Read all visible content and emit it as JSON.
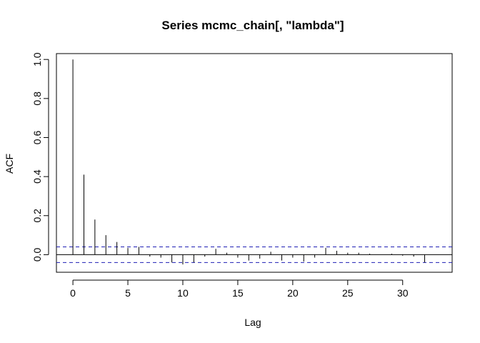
{
  "chart_data": {
    "type": "bar",
    "title": "Series  mcmc_chain[, \"lambda\"]",
    "xlabel": "Lag",
    "ylabel": "ACF",
    "xlim": [
      -1.5,
      34.5
    ],
    "ylim": [
      -0.09,
      1.03
    ],
    "x_ticks": [
      0,
      5,
      10,
      15,
      20,
      25,
      30
    ],
    "y_ticks": [
      0.0,
      0.2,
      0.4,
      0.6,
      0.8,
      1.0
    ],
    "y_tick_labels": [
      "0.0",
      "0.2",
      "0.4",
      "0.6",
      "0.8",
      "1.0"
    ],
    "confidence_bound": 0.04,
    "lags": [
      0,
      1,
      2,
      3,
      4,
      5,
      6,
      7,
      8,
      9,
      10,
      11,
      12,
      13,
      14,
      15,
      16,
      17,
      18,
      19,
      20,
      21,
      22,
      23,
      24,
      25,
      26,
      27,
      28,
      29,
      30,
      31,
      32
    ],
    "acf": [
      1.0,
      0.41,
      0.18,
      0.1,
      0.065,
      0.035,
      0.04,
      -0.01,
      -0.015,
      -0.04,
      -0.05,
      -0.04,
      -0.01,
      0.03,
      0.01,
      -0.015,
      -0.03,
      -0.02,
      0.015,
      -0.03,
      -0.015,
      -0.035,
      -0.015,
      0.035,
      0.02,
      0.01,
      0.01,
      0.005,
      0.0,
      0.005,
      -0.005,
      -0.01,
      -0.04
    ],
    "colors": {
      "axes": "#000000",
      "bars": "#000000",
      "confidence_lines": "#1f1fb5"
    }
  }
}
